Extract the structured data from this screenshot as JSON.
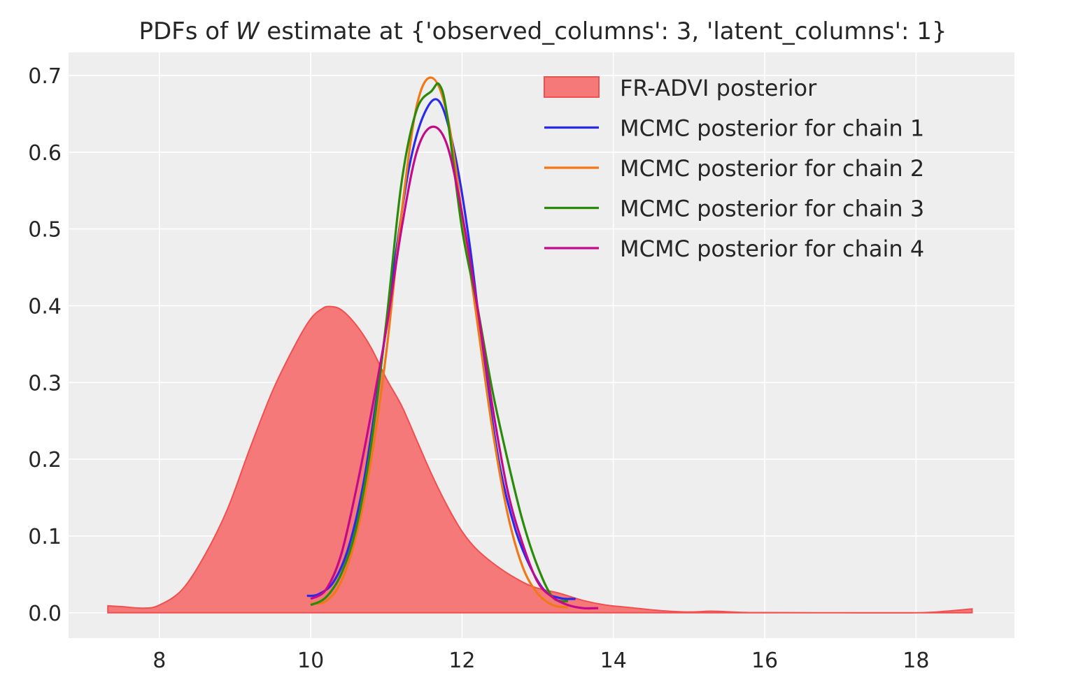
{
  "chart_data": {
    "type": "area",
    "title": {
      "prefix": "PDFs of ",
      "italic": "W",
      "suffix": " estimate at {'observed_columns': 3, 'latent_columns': 1}"
    },
    "xlabel": "",
    "ylabel": "",
    "xlim": [
      6.8,
      19.3
    ],
    "ylim": [
      -0.033,
      0.73
    ],
    "xticks": [
      "8",
      "10",
      "12",
      "14",
      "16",
      "18"
    ],
    "xtick_values": [
      8,
      10,
      12,
      14,
      16,
      18
    ],
    "yticks": [
      "0.0",
      "0.1",
      "0.2",
      "0.3",
      "0.4",
      "0.5",
      "0.6",
      "0.7"
    ],
    "ytick_values": [
      0.0,
      0.1,
      0.2,
      0.3,
      0.4,
      0.5,
      0.6,
      0.7
    ],
    "grid": true,
    "legend_position": "top-right",
    "series": [
      {
        "name": "FR-ADVI posterior",
        "kind": "area",
        "color": "#f47272",
        "edge_color": "#f05050",
        "x": [
          7.32,
          7.5,
          7.8,
          8.0,
          8.3,
          8.6,
          8.9,
          9.2,
          9.5,
          9.8,
          10.0,
          10.15,
          10.25,
          10.4,
          10.6,
          10.8,
          11.0,
          11.2,
          11.4,
          11.6,
          11.8,
          12.0,
          12.2,
          12.5,
          12.8,
          13.0,
          13.3,
          13.6,
          13.9,
          14.2,
          14.6,
          15.0,
          15.3,
          15.7,
          16.0,
          17.0,
          18.0,
          18.4,
          18.74
        ],
        "y": [
          0.009,
          0.008,
          0.006,
          0.01,
          0.03,
          0.075,
          0.135,
          0.215,
          0.29,
          0.35,
          0.383,
          0.396,
          0.399,
          0.395,
          0.375,
          0.345,
          0.305,
          0.27,
          0.225,
          0.18,
          0.14,
          0.106,
          0.082,
          0.058,
          0.04,
          0.032,
          0.025,
          0.016,
          0.01,
          0.007,
          0.003,
          0.001,
          0.002,
          0.0005,
          0.0002,
          0.0,
          0.0,
          0.002,
          0.005
        ]
      },
      {
        "name": "MCMC posterior for chain 1",
        "kind": "line",
        "color": "#2a2aeb",
        "x": [
          9.95,
          10.1,
          10.3,
          10.5,
          10.7,
          10.9,
          11.1,
          11.3,
          11.5,
          11.7,
          11.9,
          12.1,
          12.3,
          12.5,
          12.7,
          12.9,
          13.1,
          13.3,
          13.5
        ],
        "y": [
          0.022,
          0.024,
          0.04,
          0.085,
          0.17,
          0.3,
          0.45,
          0.58,
          0.65,
          0.666,
          0.6,
          0.48,
          0.32,
          0.19,
          0.11,
          0.06,
          0.028,
          0.019,
          0.018
        ]
      },
      {
        "name": "MCMC posterior for chain 2",
        "kind": "line",
        "color": "#f07818",
        "x": [
          10.0,
          10.2,
          10.4,
          10.6,
          10.8,
          11.0,
          11.2,
          11.4,
          11.6,
          11.8,
          12.0,
          12.2,
          12.4,
          12.6,
          12.8,
          13.0,
          13.2,
          13.4
        ],
        "y": [
          0.012,
          0.015,
          0.04,
          0.1,
          0.2,
          0.34,
          0.52,
          0.66,
          0.697,
          0.65,
          0.52,
          0.38,
          0.24,
          0.13,
          0.06,
          0.025,
          0.01,
          0.007
        ]
      },
      {
        "name": "MCMC posterior for chain 3",
        "kind": "line",
        "color": "#2a8a0a",
        "x": [
          10.0,
          10.2,
          10.4,
          10.6,
          10.8,
          11.0,
          11.2,
          11.4,
          11.6,
          11.7,
          11.8,
          12.0,
          12.2,
          12.4,
          12.6,
          12.8,
          13.0,
          13.2,
          13.4
        ],
        "y": [
          0.01,
          0.02,
          0.05,
          0.11,
          0.22,
          0.38,
          0.56,
          0.655,
          0.68,
          0.688,
          0.65,
          0.5,
          0.4,
          0.29,
          0.2,
          0.12,
          0.06,
          0.02,
          0.015
        ]
      },
      {
        "name": "MCMC posterior for chain 4",
        "kind": "line",
        "color": "#c40a8a",
        "x": [
          10.0,
          10.2,
          10.4,
          10.6,
          10.8,
          11.0,
          11.2,
          11.4,
          11.6,
          11.8,
          12.0,
          12.2,
          12.4,
          12.6,
          12.8,
          13.0,
          13.2,
          13.4,
          13.6,
          13.8
        ],
        "y": [
          0.018,
          0.03,
          0.075,
          0.16,
          0.26,
          0.37,
          0.5,
          0.6,
          0.633,
          0.61,
          0.52,
          0.4,
          0.27,
          0.16,
          0.09,
          0.04,
          0.02,
          0.01,
          0.006,
          0.006
        ]
      }
    ]
  }
}
